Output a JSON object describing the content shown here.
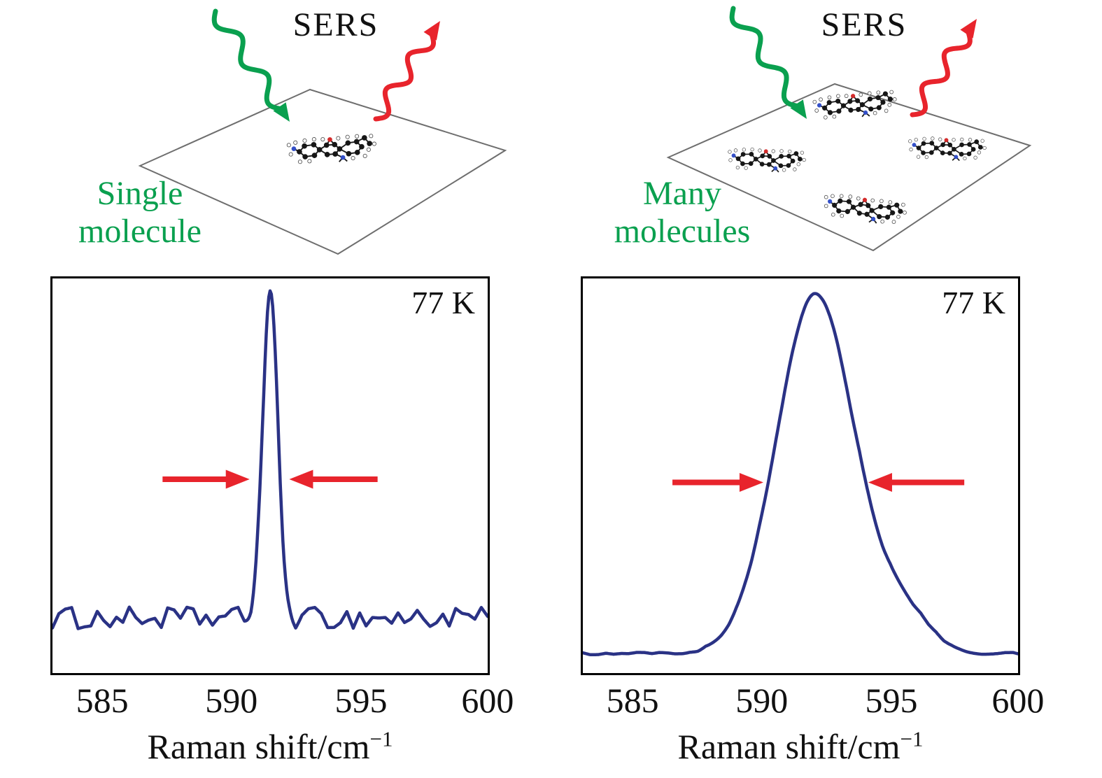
{
  "figure": {
    "panels": [
      {
        "diagram_title": "SERS",
        "label_lines": [
          "Single",
          "molecule"
        ],
        "molecule_count": 1
      },
      {
        "diagram_title": "SERS",
        "label_lines": [
          "Many",
          "molecules"
        ],
        "molecule_count": 4
      }
    ]
  },
  "colors": {
    "green": "#0aa04f",
    "red": "#e8242c",
    "curve_navy": "#2a3285",
    "plane_gray": "#6e6e6e",
    "text_black": "#111111"
  },
  "chart_data": [
    {
      "type": "line",
      "panel": "single molecule",
      "annotation": "77 K",
      "xlabel": "Raman shift/cm⁻¹",
      "xlabel_base": "Raman shift/cm",
      "xlabel_exp": "−1",
      "xmin": 583,
      "xmax": 600,
      "xticks": [
        "585",
        "590",
        "595",
        "600"
      ],
      "ylabel": "",
      "grid": false,
      "legend": false,
      "series": [
        {
          "name": "single-molecule SERS spectrum",
          "peaks": [
            {
              "center": 591.5,
              "fwhm": 0.7,
              "amplitude": 1.0
            }
          ],
          "baseline": 0.07,
          "noise_amplitude": 0.035
        }
      ],
      "fwhm_arrows": {
        "y_level": 0.5,
        "left_from": 587.3,
        "left_to": 590.7,
        "right_from": 595.7,
        "right_to": 592.25
      }
    },
    {
      "type": "line",
      "panel": "many molecules",
      "annotation": "77 K",
      "xlabel": "Raman shift/cm⁻¹",
      "xlabel_base": "Raman shift/cm",
      "xlabel_exp": "−1",
      "xmin": 583,
      "xmax": 600,
      "xticks": [
        "585",
        "590",
        "595",
        "600"
      ],
      "ylabel": "",
      "grid": false,
      "legend": false,
      "series": [
        {
          "name": "many-molecule SERS spectrum",
          "peaks": [
            {
              "center": 592.1,
              "fwhm": 3.6,
              "amplitude": 1.02
            },
            {
              "center": 595.6,
              "fwhm": 2.4,
              "amplitude": 0.1
            }
          ],
          "baseline": 0.015,
          "noise_amplitude": 0.004
        }
      ],
      "fwhm_arrows": {
        "y_level": 0.5,
        "left_from": 586.5,
        "left_to": 590.05,
        "right_from": 597.9,
        "right_to": 594.15
      }
    }
  ]
}
